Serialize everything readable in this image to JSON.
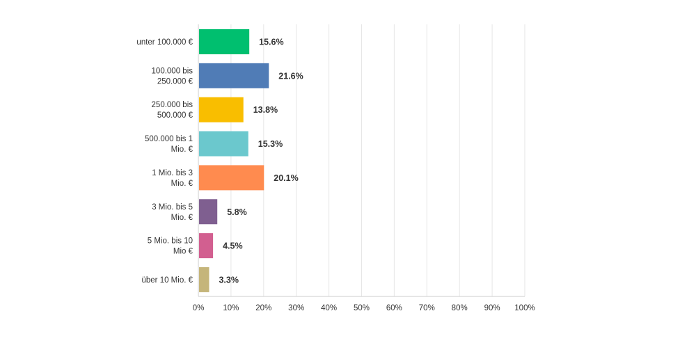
{
  "chart_data": {
    "type": "bar",
    "orientation": "horizontal",
    "categories": [
      [
        "unter 100.000 €"
      ],
      [
        "100.000 bis",
        "250.000 €"
      ],
      [
        "250.000 bis",
        "500.000 €"
      ],
      [
        "500.000 bis 1",
        "Mio. €"
      ],
      [
        "1 Mio. bis 3",
        "Mio. €"
      ],
      [
        "3 Mio. bis 5",
        "Mio. €"
      ],
      [
        "5 Mio. bis 10",
        "Mio €"
      ],
      [
        "über 10 Mio. €"
      ]
    ],
    "values": [
      15.6,
      21.6,
      13.8,
      15.3,
      20.1,
      5.8,
      4.5,
      3.3
    ],
    "value_labels": [
      "15.6%",
      "21.6%",
      "13.8%",
      "15.3%",
      "20.1%",
      "5.8%",
      "4.5%",
      "3.3%"
    ],
    "colors": [
      "#00bf6f",
      "#507cb6",
      "#f9be00",
      "#6bc8cd",
      "#ff8b4f",
      "#7f5f90",
      "#d25f90",
      "#c5b57a"
    ],
    "xlim": [
      0,
      100
    ],
    "xticks": [
      "0%",
      "10%",
      "20%",
      "30%",
      "40%",
      "50%",
      "60%",
      "70%",
      "80%",
      "90%",
      "100%"
    ],
    "grid": true,
    "legend": "none",
    "gridline_color": "#e6e6e6",
    "axis_color": "#cccccc"
  }
}
